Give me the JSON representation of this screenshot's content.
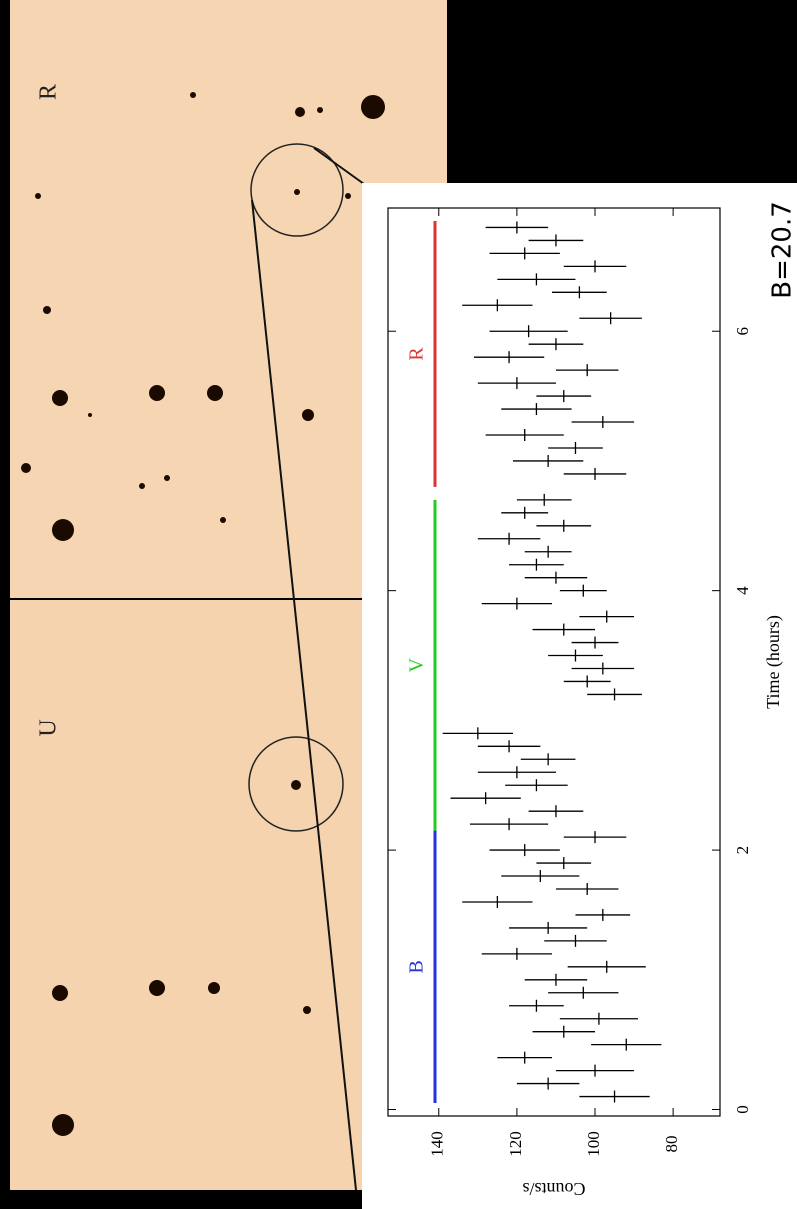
{
  "chart_data": {
    "type": "errorbar",
    "panel_labels": [
      "U",
      "R"
    ],
    "annotation": "B=20.7",
    "x_label": "Time (hours)",
    "y_label": "Counts/s",
    "xlim": [
      -0.05,
      6.95
    ],
    "xticks": [
      0,
      2,
      4,
      6
    ],
    "ylim": [
      68,
      153
    ],
    "yticks": [
      80,
      100,
      120,
      140
    ],
    "bands": [
      {
        "name": "B",
        "color": "#2233dd",
        "start": 0.05,
        "end": 2.15
      },
      {
        "name": "V",
        "color": "#22cc22",
        "start": 2.15,
        "end": 4.7
      },
      {
        "name": "R",
        "color": "#dd3333",
        "start": 4.8,
        "end": 6.85
      }
    ],
    "series": [
      {
        "color": "#000000",
        "x": [
          0.1,
          0.2,
          0.3,
          0.4,
          0.5,
          0.6,
          0.7,
          0.8,
          0.9,
          1.0,
          1.1,
          1.2,
          1.3,
          1.4,
          1.5,
          1.6,
          1.7,
          1.8,
          1.9,
          2.0,
          2.1,
          2.2,
          2.3,
          2.4,
          2.5,
          2.6,
          2.7,
          2.8,
          2.9,
          3.2,
          3.3,
          3.4,
          3.5,
          3.6,
          3.7,
          3.8,
          3.9,
          4.0,
          4.1,
          4.2,
          4.3,
          4.4,
          4.5,
          4.6,
          4.7,
          4.9,
          5.0,
          5.1,
          5.2,
          5.3,
          5.4,
          5.5,
          5.6,
          5.7,
          5.8,
          5.9,
          6.0,
          6.1,
          6.2,
          6.3,
          6.4,
          6.5,
          6.6,
          6.7,
          6.8
        ],
        "values": [
          95,
          112,
          100,
          118,
          92,
          108,
          99,
          115,
          103,
          110,
          97,
          120,
          105,
          112,
          98,
          125,
          102,
          114,
          108,
          118,
          100,
          122,
          110,
          128,
          115,
          120,
          112,
          122,
          130,
          95,
          102,
          98,
          105,
          100,
          108,
          97,
          120,
          103,
          110,
          115,
          112,
          122,
          108,
          118,
          113,
          100,
          112,
          105,
          118,
          98,
          115,
          108,
          120,
          102,
          122,
          110,
          117,
          96,
          125,
          104,
          115,
          100,
          118,
          110,
          120
        ],
        "errors": [
          9,
          8,
          10,
          7,
          9,
          8,
          10,
          7,
          9,
          8,
          10,
          9,
          8,
          10,
          7,
          9,
          8,
          10,
          7,
          9,
          8,
          10,
          7,
          9,
          8,
          10,
          7,
          8,
          9,
          7,
          6,
          8,
          7,
          6,
          8,
          7,
          9,
          6,
          8,
          7,
          6,
          8,
          7,
          6,
          7,
          8,
          9,
          7,
          10,
          8,
          9,
          7,
          10,
          8,
          9,
          7,
          10,
          8,
          9,
          7,
          10,
          8,
          9,
          7,
          8
        ]
      }
    ]
  }
}
